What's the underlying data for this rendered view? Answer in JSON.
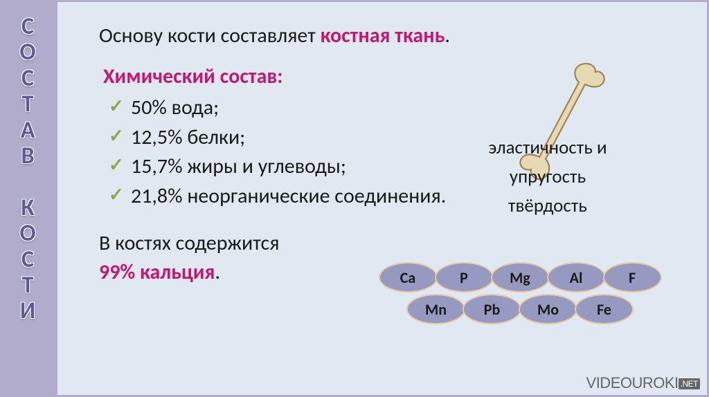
{
  "colors": {
    "sidebar_bg": "#b1accc",
    "sidebar_text": "#5d5a99",
    "main_bg": "#e0e9f2",
    "main_border": "#b1accc",
    "heading_hl": "#c7166f",
    "subtitle": "#c7166f",
    "check": "#8aa846",
    "calcium_hl": "#c7166f",
    "element_fill": "#9699c0",
    "element_border": "#ebc9a0",
    "element_text": "#1a1a1a"
  },
  "sidebar": {
    "word1": "СОСТАВ",
    "word2": "КОСТИ",
    "gap_lines": 1
  },
  "heading": {
    "prefix": "Основу кости составляет ",
    "hl": "костная ткань",
    "suffix": "."
  },
  "subtitle": "Химический состав:",
  "items": [
    "50% вода;",
    "12,5% белки;",
    "15,7% жиры и углеводы;",
    "21,8% неорганические соединения."
  ],
  "calcium": {
    "line1": "В костях содержится",
    "hl": "99% кальция",
    "suffix": "."
  },
  "properties": [
    "эластичность и",
    "упругость",
    "твёрдость"
  ],
  "elements": {
    "row1": [
      "Ca",
      "P",
      "Mg",
      "Al",
      "F"
    ],
    "row2": [
      "Mn",
      "Pb",
      "Mo",
      "Fe"
    ]
  },
  "watermark": {
    "text": "VIDEOUROKI",
    "suffix": ".NET"
  },
  "bone": {
    "fill": "#e8d9b5",
    "stroke": "#a08555"
  }
}
